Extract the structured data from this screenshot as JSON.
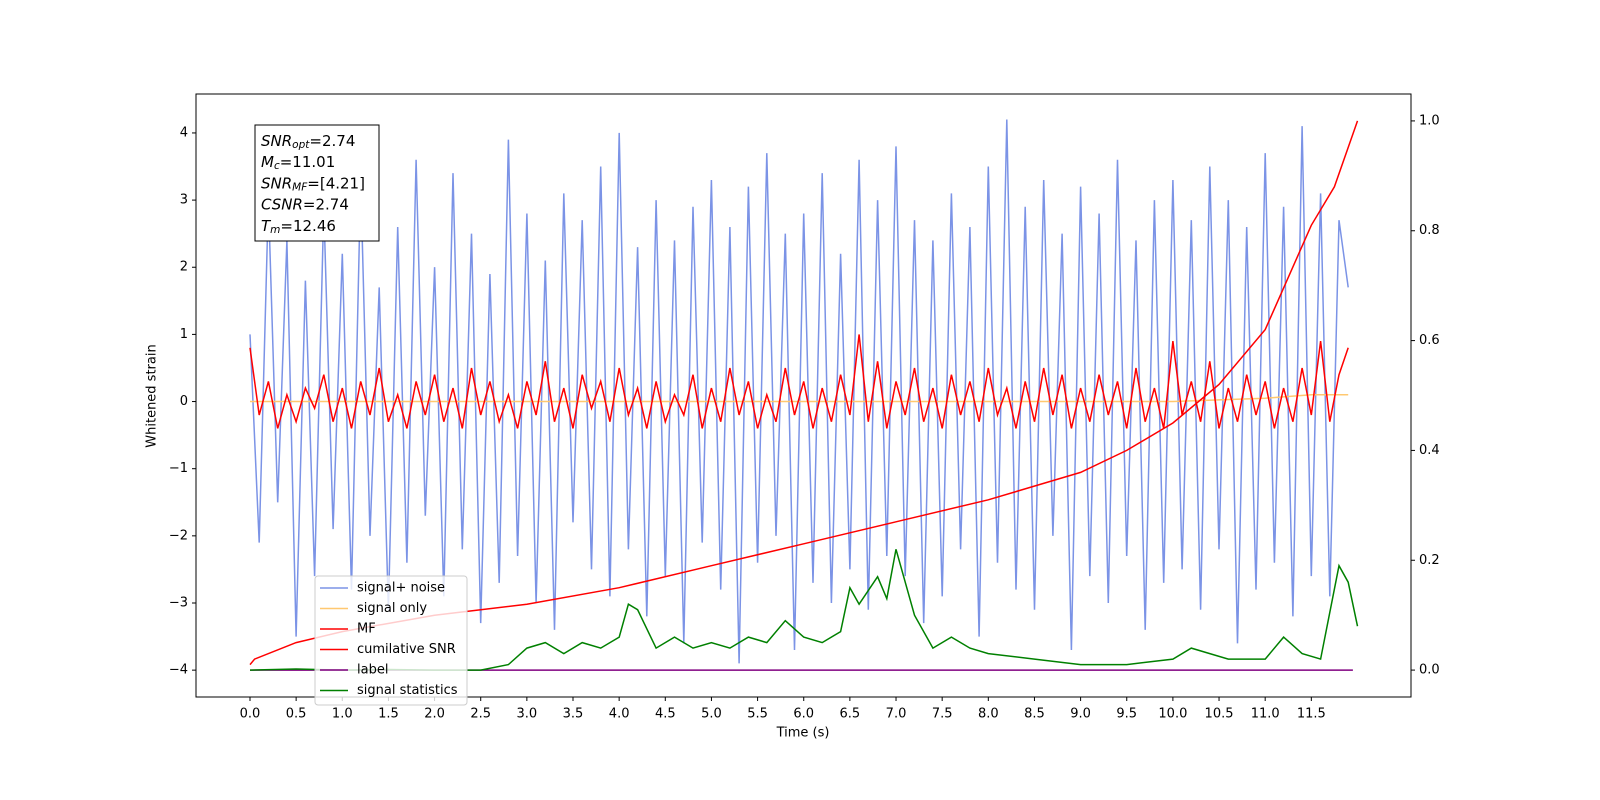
{
  "chart_data": {
    "type": "line",
    "xlabel": "Time (s)",
    "ylabel": "Whitened strain",
    "xlim": [
      -0.585,
      12.58
    ],
    "ylim": [
      -4.4,
      4.58
    ],
    "y2lim": [
      -0.049,
      1.049
    ],
    "xticks": [
      {
        "value": 0,
        "label": "0.0"
      },
      {
        "value": 0.5,
        "label": "0.5"
      },
      {
        "value": 1,
        "label": "1.0"
      },
      {
        "value": 1.5,
        "label": "1.5"
      },
      {
        "value": 2,
        "label": "2.0"
      },
      {
        "value": 2.5,
        "label": "2.5"
      },
      {
        "value": 3,
        "label": "3.0"
      },
      {
        "value": 3.5,
        "label": "3.5"
      },
      {
        "value": 4,
        "label": "4.0"
      },
      {
        "value": 4.5,
        "label": "4.5"
      },
      {
        "value": 5,
        "label": "5.0"
      },
      {
        "value": 5.5,
        "label": "5.5"
      },
      {
        "value": 6,
        "label": "6.0"
      },
      {
        "value": 6.5,
        "label": "6.5"
      },
      {
        "value": 7,
        "label": "7.0"
      },
      {
        "value": 7.5,
        "label": "7.5"
      },
      {
        "value": 8,
        "label": "8.0"
      },
      {
        "value": 8.5,
        "label": "8.5"
      },
      {
        "value": 9,
        "label": "9.0"
      },
      {
        "value": 9.5,
        "label": "9.5"
      },
      {
        "value": 10,
        "label": "10.0"
      },
      {
        "value": 10.5,
        "label": "10.5"
      },
      {
        "value": 11,
        "label": "11.0"
      },
      {
        "value": 11.5,
        "label": "11.5"
      }
    ],
    "yticks": [
      {
        "value": -4,
        "label": "−4"
      },
      {
        "value": -3,
        "label": "−3"
      },
      {
        "value": -2,
        "label": "−2"
      },
      {
        "value": -1,
        "label": "−1"
      },
      0,
      1,
      2,
      3,
      4
    ],
    "y2ticks": [
      {
        "value": 0,
        "label": "0.0"
      },
      {
        "value": 0.2,
        "label": "0.2"
      },
      {
        "value": 0.4,
        "label": "0.4"
      },
      {
        "value": 0.6,
        "label": "0.6"
      },
      {
        "value": 0.8,
        "label": "0.8"
      },
      {
        "value": 1,
        "label": "1.0"
      }
    ],
    "grid": false,
    "legend": "lower left",
    "annotations": [
      {
        "base": "SNR",
        "sub": "opt",
        "text": "=2.74"
      },
      {
        "base": "M",
        "sub": "c",
        "text": "=11.01"
      },
      {
        "base": "SNR",
        "sub": "MF",
        "text": "=[4.21]"
      },
      {
        "base": "CSNR",
        "text": "=2.74"
      },
      {
        "base": "T",
        "sub": "m",
        "text": "=12.46"
      }
    ],
    "series": [
      {
        "name": "signal+ noise",
        "color": "#7b93e6",
        "x": [
          0,
          0.1,
          0.2,
          0.3,
          0.4,
          0.5,
          0.6,
          0.7,
          0.8,
          0.9,
          1,
          1.1,
          1.2,
          1.3,
          1.4,
          1.5,
          1.6,
          1.7,
          1.8,
          1.9,
          2,
          2.1,
          2.2,
          2.3,
          2.4,
          2.5,
          2.6,
          2.7,
          2.8,
          2.9,
          3,
          3.1,
          3.2,
          3.3,
          3.4,
          3.5,
          3.6,
          3.7,
          3.8,
          3.9,
          4,
          4.1,
          4.2,
          4.3,
          4.4,
          4.5,
          4.6,
          4.7,
          4.8,
          4.9,
          5,
          5.1,
          5.2,
          5.3,
          5.4,
          5.5,
          5.6,
          5.7,
          5.8,
          5.9,
          6,
          6.1,
          6.2,
          6.3,
          6.4,
          6.5,
          6.6,
          6.7,
          6.8,
          6.9,
          7,
          7.1,
          7.2,
          7.3,
          7.4,
          7.5,
          7.6,
          7.7,
          7.8,
          7.9,
          8,
          8.1,
          8.2,
          8.3,
          8.4,
          8.5,
          8.6,
          8.7,
          8.8,
          8.9,
          9,
          9.1,
          9.2,
          9.3,
          9.4,
          9.5,
          9.6,
          9.7,
          9.8,
          9.9,
          10,
          10.1,
          10.2,
          10.3,
          10.4,
          10.5,
          10.6,
          10.7,
          10.8,
          10.9,
          11,
          11.1,
          11.2,
          11.3,
          11.4,
          11.5,
          11.6,
          11.7,
          11.8,
          11.9
        ],
        "values": [
          1.0,
          -2.1,
          3.0,
          -1.5,
          2.4,
          -3.5,
          1.8,
          -2.6,
          2.9,
          -1.9,
          2.2,
          -2.8,
          3.3,
          -2.0,
          1.7,
          -3.1,
          2.6,
          -2.4,
          3.6,
          -1.7,
          2.0,
          -2.9,
          3.4,
          -2.2,
          2.5,
          -3.3,
          1.9,
          -2.7,
          3.9,
          -2.3,
          2.8,
          -3.0,
          2.1,
          -3.4,
          3.1,
          -1.8,
          2.7,
          -2.5,
          3.5,
          -2.9,
          4.0,
          -2.2,
          2.3,
          -3.2,
          3.0,
          -2.6,
          2.4,
          -3.6,
          2.9,
          -2.1,
          3.3,
          -2.8,
          2.6,
          -3.9,
          3.2,
          -2.4,
          3.7,
          -2.0,
          2.5,
          -3.7,
          2.8,
          -2.7,
          3.4,
          -3.0,
          2.2,
          -2.5,
          3.6,
          -3.1,
          3.0,
          -2.3,
          3.8,
          -2.6,
          2.7,
          -3.3,
          2.4,
          -2.9,
          3.1,
          -2.2,
          2.6,
          -3.5,
          3.5,
          -2.4,
          4.2,
          -2.8,
          2.9,
          -3.1,
          3.3,
          -2.0,
          2.5,
          -3.7,
          3.2,
          -2.6,
          2.8,
          -3.0,
          3.6,
          -2.3,
          2.4,
          -3.4,
          3.0,
          -2.7,
          3.3,
          -2.5,
          2.7,
          -3.1,
          3.5,
          -2.2,
          3.0,
          -3.6,
          2.6,
          -2.8,
          3.7,
          -2.4,
          2.9,
          -3.2,
          4.1,
          -2.6,
          3.1,
          -2.9,
          2.7,
          1.7
        ]
      },
      {
        "name": "signal only",
        "color": "#ffc870",
        "x": [
          0,
          6,
          10,
          11,
          11.5,
          11.9
        ],
        "values": [
          0,
          0,
          0,
          0.05,
          0.1,
          0.1
        ]
      },
      {
        "name": "MF",
        "color": "#ff0000",
        "x": [
          0,
          0.1,
          0.2,
          0.3,
          0.4,
          0.5,
          0.6,
          0.7,
          0.8,
          0.9,
          1,
          1.1,
          1.2,
          1.3,
          1.4,
          1.5,
          1.6,
          1.7,
          1.8,
          1.9,
          2,
          2.1,
          2.2,
          2.3,
          2.4,
          2.5,
          2.6,
          2.7,
          2.8,
          2.9,
          3,
          3.1,
          3.2,
          3.3,
          3.4,
          3.5,
          3.6,
          3.7,
          3.8,
          3.9,
          4,
          4.1,
          4.2,
          4.3,
          4.4,
          4.5,
          4.6,
          4.7,
          4.8,
          4.9,
          5,
          5.1,
          5.2,
          5.3,
          5.4,
          5.5,
          5.6,
          5.7,
          5.8,
          5.9,
          6,
          6.1,
          6.2,
          6.3,
          6.4,
          6.5,
          6.6,
          6.7,
          6.8,
          6.9,
          7,
          7.1,
          7.2,
          7.3,
          7.4,
          7.5,
          7.6,
          7.7,
          7.8,
          7.9,
          8,
          8.1,
          8.2,
          8.3,
          8.4,
          8.5,
          8.6,
          8.7,
          8.8,
          8.9,
          9,
          9.1,
          9.2,
          9.3,
          9.4,
          9.5,
          9.6,
          9.7,
          9.8,
          9.9,
          10,
          10.1,
          10.2,
          10.3,
          10.4,
          10.5,
          10.6,
          10.7,
          10.8,
          10.9,
          11,
          11.1,
          11.2,
          11.3,
          11.4,
          11.5,
          11.6,
          11.7,
          11.8,
          11.9
        ],
        "values": [
          0.8,
          -0.2,
          0.3,
          -0.4,
          0.1,
          -0.3,
          0.2,
          -0.1,
          0.4,
          -0.3,
          0.2,
          -0.4,
          0.3,
          -0.2,
          0.5,
          -0.3,
          0.1,
          -0.4,
          0.3,
          -0.2,
          0.4,
          -0.3,
          0.2,
          -0.4,
          0.5,
          -0.2,
          0.3,
          -0.3,
          0.1,
          -0.4,
          0.3,
          -0.2,
          0.6,
          -0.3,
          0.2,
          -0.4,
          0.4,
          -0.1,
          0.3,
          -0.3,
          0.5,
          -0.2,
          0.2,
          -0.4,
          0.3,
          -0.3,
          0.1,
          -0.2,
          0.4,
          -0.4,
          0.2,
          -0.3,
          0.5,
          -0.2,
          0.3,
          -0.4,
          0.1,
          -0.3,
          0.5,
          -0.2,
          0.3,
          -0.4,
          0.2,
          -0.3,
          0.4,
          -0.2,
          1.0,
          -0.3,
          0.6,
          -0.4,
          0.3,
          -0.2,
          0.5,
          -0.3,
          0.2,
          -0.4,
          0.4,
          -0.2,
          0.3,
          -0.3,
          0.5,
          -0.2,
          0.2,
          -0.4,
          0.3,
          -0.3,
          0.5,
          -0.2,
          0.4,
          -0.4,
          0.2,
          -0.3,
          0.4,
          -0.2,
          0.3,
          -0.4,
          0.5,
          -0.3,
          0.2,
          -0.4,
          0.9,
          -0.2,
          0.3,
          -0.3,
          0.6,
          -0.4,
          0.2,
          -0.3,
          0.4,
          -0.2,
          0.3,
          -0.4,
          0.2,
          -0.3,
          0.5,
          -0.2,
          0.9,
          -0.3,
          0.4,
          0.8
        ]
      },
      {
        "name": "cumilative SNR",
        "color": "#ff0000",
        "axis": "y2",
        "x": [
          0,
          0.05,
          0.5,
          1,
          2,
          3,
          4,
          5,
          6,
          7,
          8,
          9,
          9.5,
          10,
          10.5,
          11,
          11.5,
          11.75,
          12.0
        ],
        "values": [
          0.01,
          0.02,
          0.05,
          0.07,
          0.1,
          0.12,
          0.15,
          0.19,
          0.23,
          0.27,
          0.31,
          0.36,
          0.4,
          0.45,
          0.52,
          0.62,
          0.81,
          0.88,
          1.0
        ]
      },
      {
        "name": "label",
        "color": "#800080",
        "axis": "y2",
        "x": [
          0,
          11.95
        ],
        "values": [
          0,
          0
        ]
      },
      {
        "name": "signal statistics",
        "color": "#008000",
        "axis": "y2",
        "x": [
          0,
          0.5,
          1,
          1.5,
          2,
          2.5,
          2.8,
          3.0,
          3.2,
          3.4,
          3.6,
          3.8,
          4.0,
          4.1,
          4.2,
          4.4,
          4.6,
          4.8,
          5.0,
          5.2,
          5.4,
          5.6,
          5.8,
          6.0,
          6.2,
          6.4,
          6.5,
          6.6,
          6.8,
          6.9,
          7.0,
          7.2,
          7.4,
          7.6,
          7.8,
          8.0,
          8.5,
          9.0,
          9.5,
          10.0,
          10.2,
          10.4,
          10.6,
          11.0,
          11.2,
          11.4,
          11.6,
          11.8,
          11.9,
          12.0
        ],
        "values": [
          0,
          0.002,
          0,
          0.001,
          0,
          0,
          0.01,
          0.04,
          0.05,
          0.03,
          0.05,
          0.04,
          0.06,
          0.12,
          0.11,
          0.04,
          0.06,
          0.04,
          0.05,
          0.04,
          0.06,
          0.05,
          0.09,
          0.06,
          0.05,
          0.07,
          0.15,
          0.12,
          0.17,
          0.13,
          0.22,
          0.1,
          0.04,
          0.06,
          0.04,
          0.03,
          0.02,
          0.01,
          0.01,
          0.02,
          0.04,
          0.03,
          0.02,
          0.02,
          0.06,
          0.03,
          0.02,
          0.19,
          0.16,
          0.08
        ]
      }
    ]
  }
}
